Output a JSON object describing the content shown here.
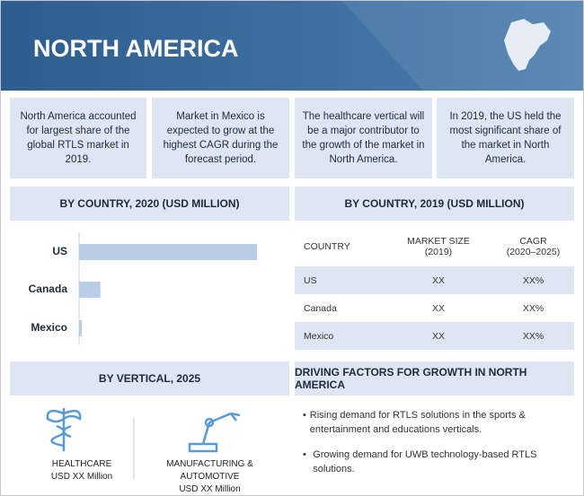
{
  "header": {
    "title": "NORTH AMERICA"
  },
  "highlights": [
    "North America accounted for largest share of the global RTLS market in 2019.",
    "Market in Mexico is expected to grow at the highest CAGR during the forecast period.",
    "The healthcare vertical will be a major contributor to the growth of the market in North America.",
    "In 2019, the US held the most significant share of the market in North America."
  ],
  "chart_data": {
    "type": "bar",
    "orientation": "horizontal",
    "title": "BY COUNTRY, 2020 (USD MILLION)",
    "categories": [
      "US",
      "Canada",
      "Mexico"
    ],
    "values": [
      100,
      12,
      1.5
    ],
    "color": "#b9cde6"
  },
  "table": {
    "title": "BY COUNTRY, 2019 (USD MILLION)",
    "columns": [
      "COUNTRY",
      "MARKET SIZE (2019)",
      "CAGR (2020–2025)"
    ],
    "rows": [
      [
        "US",
        "XX",
        "XX%"
      ],
      [
        "Canada",
        "XX",
        "XX%"
      ],
      [
        "Mexico",
        "XX",
        "XX%"
      ]
    ]
  },
  "verticals": {
    "title": "BY VERTICAL, 2025",
    "items": [
      {
        "name": "HEALTHCARE",
        "value": "USD XX Million"
      },
      {
        "name": "MANUFACTURING & AUTOMOTIVE",
        "value": "USD XX Million"
      }
    ]
  },
  "drivers": {
    "title": "DRIVING FACTORS FOR GROWTH IN NORTH AMERICA",
    "items": [
      "Rising demand for RTLS solutions in the sports & entertainment and educations verticals.",
      "Growing demand for UWB technology-based RTLS solutions."
    ]
  }
}
